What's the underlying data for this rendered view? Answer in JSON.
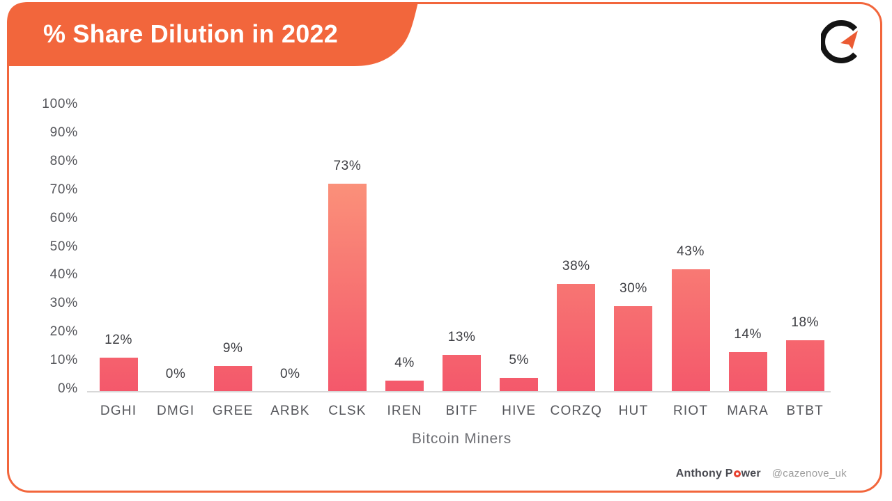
{
  "header": {
    "title": "% Share Dilution in 2022"
  },
  "logo": {
    "icon": "c-arrow-logo"
  },
  "colors": {
    "accent_orange": "#F2663C",
    "bar_gradient_top": "#FDA57F",
    "bar_gradient_bottom": "#F4586B",
    "axis_line": "#D8D8D8",
    "ring_red": "#E8402E",
    "logo_black": "#141414",
    "logo_arrow_orange": "#EB5B33"
  },
  "chart_data": {
    "type": "bar",
    "title": "% Share Dilution in 2022",
    "xlabel": "Bitcoin Miners",
    "ylabel": "",
    "categories": [
      "DGHI",
      "DMGI",
      "GREE",
      "ARBK",
      "CLSK",
      "IREN",
      "BITF",
      "HIVE",
      "CORZQ",
      "HUT",
      "RIOT",
      "MARA",
      "BTBT"
    ],
    "values": [
      12,
      0,
      9,
      0,
      73,
      4,
      13,
      5,
      38,
      30,
      43,
      14,
      18
    ],
    "value_labels": [
      "12%",
      "0%",
      "9%",
      "0%",
      "73%",
      "4%",
      "13%",
      "5%",
      "38%",
      "30%",
      "43%",
      "14%",
      "18%"
    ],
    "yticks": [
      "0%",
      "10%",
      "20%",
      "30%",
      "40%",
      "50%",
      "60%",
      "70%",
      "80%",
      "90%",
      "100%"
    ],
    "ylim": [
      0,
      100
    ],
    "grid": false,
    "legend": null
  },
  "footer": {
    "author_pre": "Anthony P",
    "author_o": "O",
    "author_post": "wer",
    "handle": "@cazenove_uk"
  }
}
